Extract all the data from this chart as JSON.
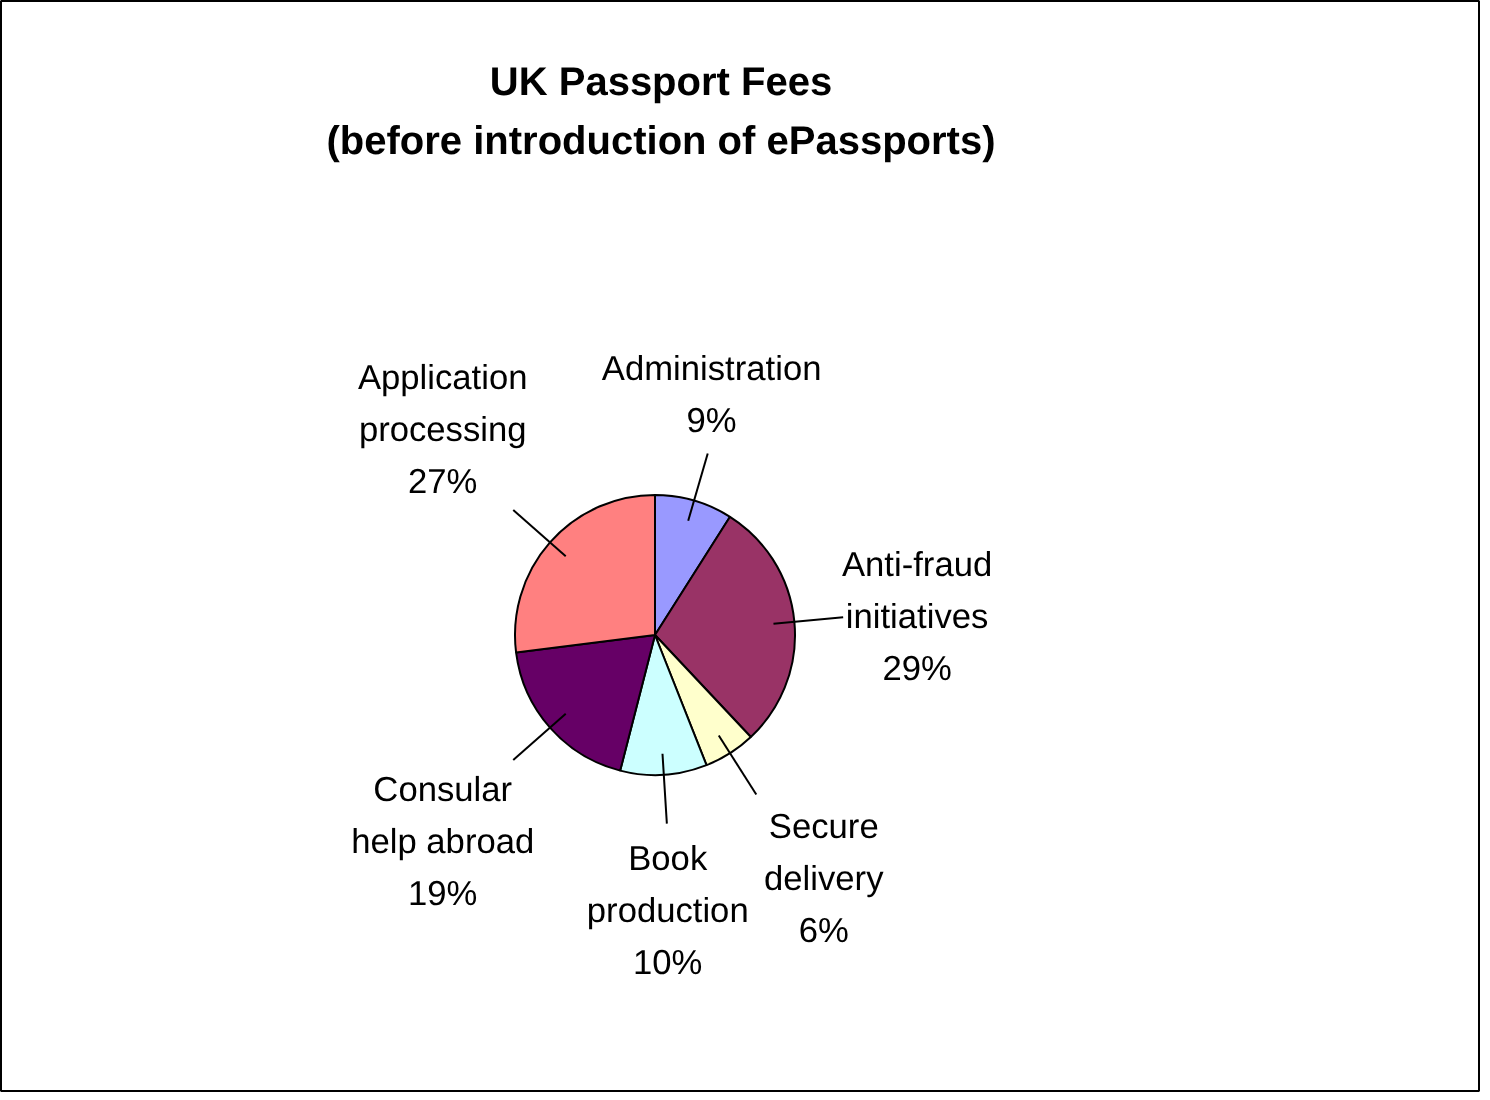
{
  "chart_data": {
    "type": "pie",
    "title": "UK Passport Fees\n(before introduction of ePassports)",
    "categories": [
      "Administration",
      "Anti-fraud\ninitiatives",
      "Secure\ndelivery",
      "Book\nproduction",
      "Consular\nhelp abroad",
      "Application\nprocessing"
    ],
    "values": [
      9,
      29,
      6,
      10,
      19,
      27
    ],
    "colors": [
      "#9999ff",
      "#993366",
      "#ffffcc",
      "#ccffff",
      "#660066",
      "#ff8080"
    ],
    "value_labels": [
      "9%",
      "29%",
      "6%",
      "10%",
      "19%",
      "27%"
    ]
  }
}
